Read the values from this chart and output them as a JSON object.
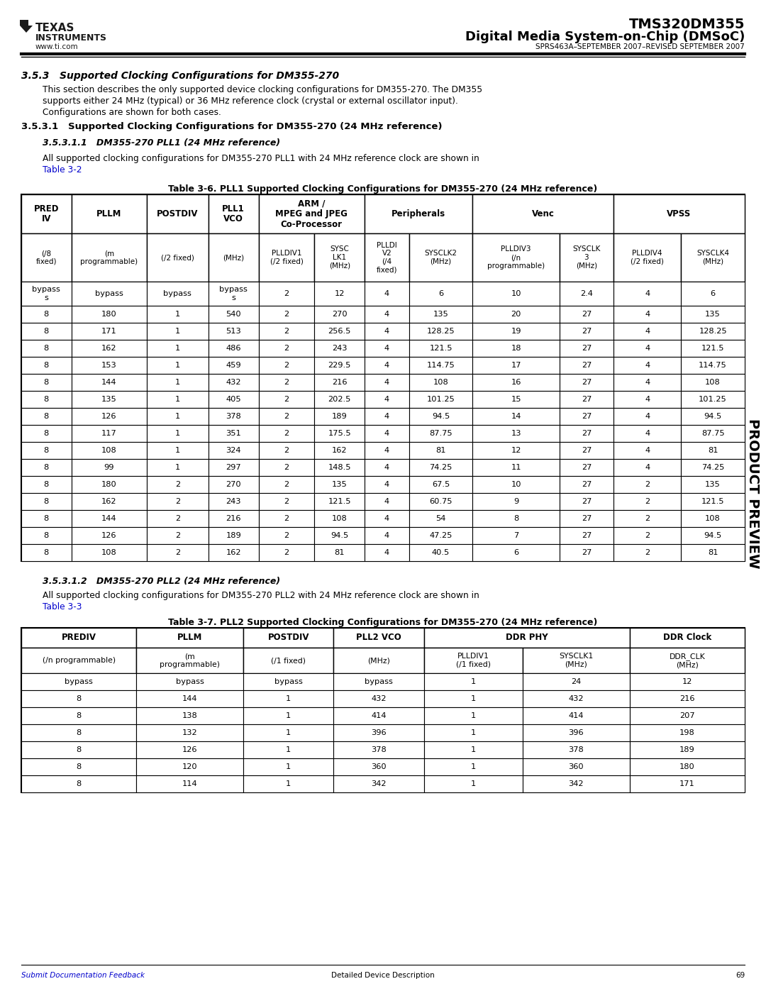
{
  "page_title1": "TMS320DM355",
  "page_title2": "Digital Media System-on-Chip (DMSoC)",
  "page_subtitle": "SPRS463A–SEPTEMBER 2007–REVISED SEPTEMBER 2007",
  "section_title": "3.5.3   Supported Clocking Configurations for DM355-270",
  "body_lines": [
    "This section describes the only supported device clocking configurations for DM355-270. The DM355",
    "supports either 24 MHz (typical) or 36 MHz reference clock (crystal or external oscillator input).",
    "Configurations are shown for both cases."
  ],
  "sub_section1": "3.5.3.1   Supported Clocking Configurations for DM355-270 (24 MHz reference)",
  "sub_section2": "3.5.3.1.1   DM355-270 PLL1 (24 MHz reference)",
  "body_text2_pre": "All supported clocking configurations for DM355-270 PLL1 with 24 MHz reference clock are shown in",
  "body_text2_link": "Table 3-2",
  "table1_title": "Table 3-6. PLL1 Supported Clocking Configurations for DM355-270 (24 MHz reference)",
  "table1_group_labels": [
    "PRED\nIV",
    "PLLM",
    "POSTDIV",
    "PLL1\nVCO",
    "ARM /\nMPEG and JPEG\nCo-Processor",
    "Peripherals",
    "Venc",
    "VPSS"
  ],
  "table1_group_spans": [
    1,
    1,
    1,
    1,
    2,
    2,
    2,
    2
  ],
  "table1_sub_labels": [
    "(/8\nfixed)",
    "(m\nprogrammable)",
    "(/2 fixed)",
    "(MHz)",
    "PLLDIV1\n(/2 fixed)",
    "SYSC\nLK1\n(MHz)",
    "PLLDI\nV2\n(/4\nfixed)",
    "SYSCLK2\n(MHz)",
    "PLLDIV3\n(/n\nprogrammable)",
    "SYSCLK\n3\n(MHz)",
    "PLLDIV4\n(/2 fixed)",
    "SYSCLK4\n(MHz)"
  ],
  "table1_col_widths_raw": [
    52,
    78,
    64,
    52,
    58,
    52,
    46,
    66,
    90,
    56,
    70,
    66
  ],
  "table1_data": [
    [
      "bypass\ns",
      "bypass",
      "bypass",
      "bypass\ns",
      "2",
      "12",
      "4",
      "6",
      "10",
      "2.4",
      "4",
      "6"
    ],
    [
      "8",
      "180",
      "1",
      "540",
      "2",
      "270",
      "4",
      "135",
      "20",
      "27",
      "4",
      "135"
    ],
    [
      "8",
      "171",
      "1",
      "513",
      "2",
      "256.5",
      "4",
      "128.25",
      "19",
      "27",
      "4",
      "128.25"
    ],
    [
      "8",
      "162",
      "1",
      "486",
      "2",
      "243",
      "4",
      "121.5",
      "18",
      "27",
      "4",
      "121.5"
    ],
    [
      "8",
      "153",
      "1",
      "459",
      "2",
      "229.5",
      "4",
      "114.75",
      "17",
      "27",
      "4",
      "114.75"
    ],
    [
      "8",
      "144",
      "1",
      "432",
      "2",
      "216",
      "4",
      "108",
      "16",
      "27",
      "4",
      "108"
    ],
    [
      "8",
      "135",
      "1",
      "405",
      "2",
      "202.5",
      "4",
      "101.25",
      "15",
      "27",
      "4",
      "101.25"
    ],
    [
      "8",
      "126",
      "1",
      "378",
      "2",
      "189",
      "4",
      "94.5",
      "14",
      "27",
      "4",
      "94.5"
    ],
    [
      "8",
      "117",
      "1",
      "351",
      "2",
      "175.5",
      "4",
      "87.75",
      "13",
      "27",
      "4",
      "87.75"
    ],
    [
      "8",
      "108",
      "1",
      "324",
      "2",
      "162",
      "4",
      "81",
      "12",
      "27",
      "4",
      "81"
    ],
    [
      "8",
      "99",
      "1",
      "297",
      "2",
      "148.5",
      "4",
      "74.25",
      "11",
      "27",
      "4",
      "74.25"
    ],
    [
      "8",
      "180",
      "2",
      "270",
      "2",
      "135",
      "4",
      "67.5",
      "10",
      "27",
      "2",
      "135"
    ],
    [
      "8",
      "162",
      "2",
      "243",
      "2",
      "121.5",
      "4",
      "60.75",
      "9",
      "27",
      "2",
      "121.5"
    ],
    [
      "8",
      "144",
      "2",
      "216",
      "2",
      "108",
      "4",
      "54",
      "8",
      "27",
      "2",
      "108"
    ],
    [
      "8",
      "126",
      "2",
      "189",
      "2",
      "94.5",
      "4",
      "47.25",
      "7",
      "27",
      "2",
      "94.5"
    ],
    [
      "8",
      "108",
      "2",
      "162",
      "2",
      "81",
      "4",
      "40.5",
      "6",
      "27",
      "2",
      "81"
    ]
  ],
  "sub_section3": "3.5.3.1.2   DM355-270 PLL2 (24 MHz reference)",
  "body_text3_pre": "All supported clocking configurations for DM355-270 PLL2 with 24 MHz reference clock are shown in",
  "body_text3_link": "Table 3-3",
  "table2_title": "Table 3-7. PLL2 Supported Clocking Configurations for DM355-270 (24 MHz reference)",
  "table2_group_labels": [
    "PREDIV",
    "PLLM",
    "POSTDIV",
    "PLL2 VCO",
    "DDR PHY",
    "DDR Clock"
  ],
  "table2_group_spans": [
    1,
    1,
    1,
    1,
    2,
    1
  ],
  "table2_sub_labels": [
    "(/n programmable)",
    "(m\nprogrammable)",
    "(/1 fixed)",
    "(MHz)",
    "PLLDIV1\n(/1 fixed)",
    "SYSCLK1\n(MHz)",
    "DDR_CLK\n(MHz)"
  ],
  "table2_col_widths_raw": [
    140,
    130,
    110,
    110,
    120,
    130,
    140
  ],
  "table2_data": [
    [
      "bypass",
      "bypass",
      "bypass",
      "bypass",
      "1",
      "24",
      "12"
    ],
    [
      "8",
      "144",
      "1",
      "432",
      "1",
      "432",
      "216"
    ],
    [
      "8",
      "138",
      "1",
      "414",
      "1",
      "414",
      "207"
    ],
    [
      "8",
      "132",
      "1",
      "396",
      "1",
      "396",
      "198"
    ],
    [
      "8",
      "126",
      "1",
      "378",
      "1",
      "378",
      "189"
    ],
    [
      "8",
      "120",
      "1",
      "360",
      "1",
      "360",
      "180"
    ],
    [
      "8",
      "114",
      "1",
      "342",
      "1",
      "342",
      "171"
    ]
  ],
  "footer_link": "Submit Documentation Feedback",
  "footer_right": "Detailed Device Description",
  "footer_page": "69",
  "side_text": "PRODUCT PREVIEW",
  "bg_color": "#ffffff",
  "text_color": "#000000",
  "link_color": "#0000cc"
}
